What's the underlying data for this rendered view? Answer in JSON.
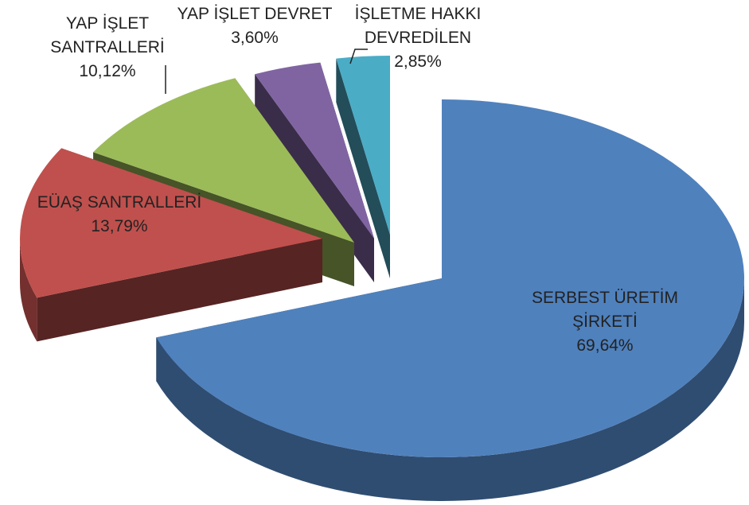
{
  "chart_data": {
    "type": "pie3d",
    "categories": [
      "SERBEST ÜRETİM ŞİRKETİ",
      "EÜAŞ SANTRALLERİ",
      "YAP İŞLET SANTRALLERİ",
      "YAP İŞLET DEVRET",
      "İŞLETME HAKKI DEVREDİLEN"
    ],
    "values": [
      69.64,
      13.79,
      10.12,
      3.6,
      2.85
    ],
    "value_labels": [
      "69,64%",
      "13,79%",
      "10,12%",
      "3,60%",
      "2,85%"
    ],
    "colors": [
      "#4f81bd",
      "#c0504d",
      "#9bbb59",
      "#8064a2",
      "#4bacc6"
    ]
  }
}
